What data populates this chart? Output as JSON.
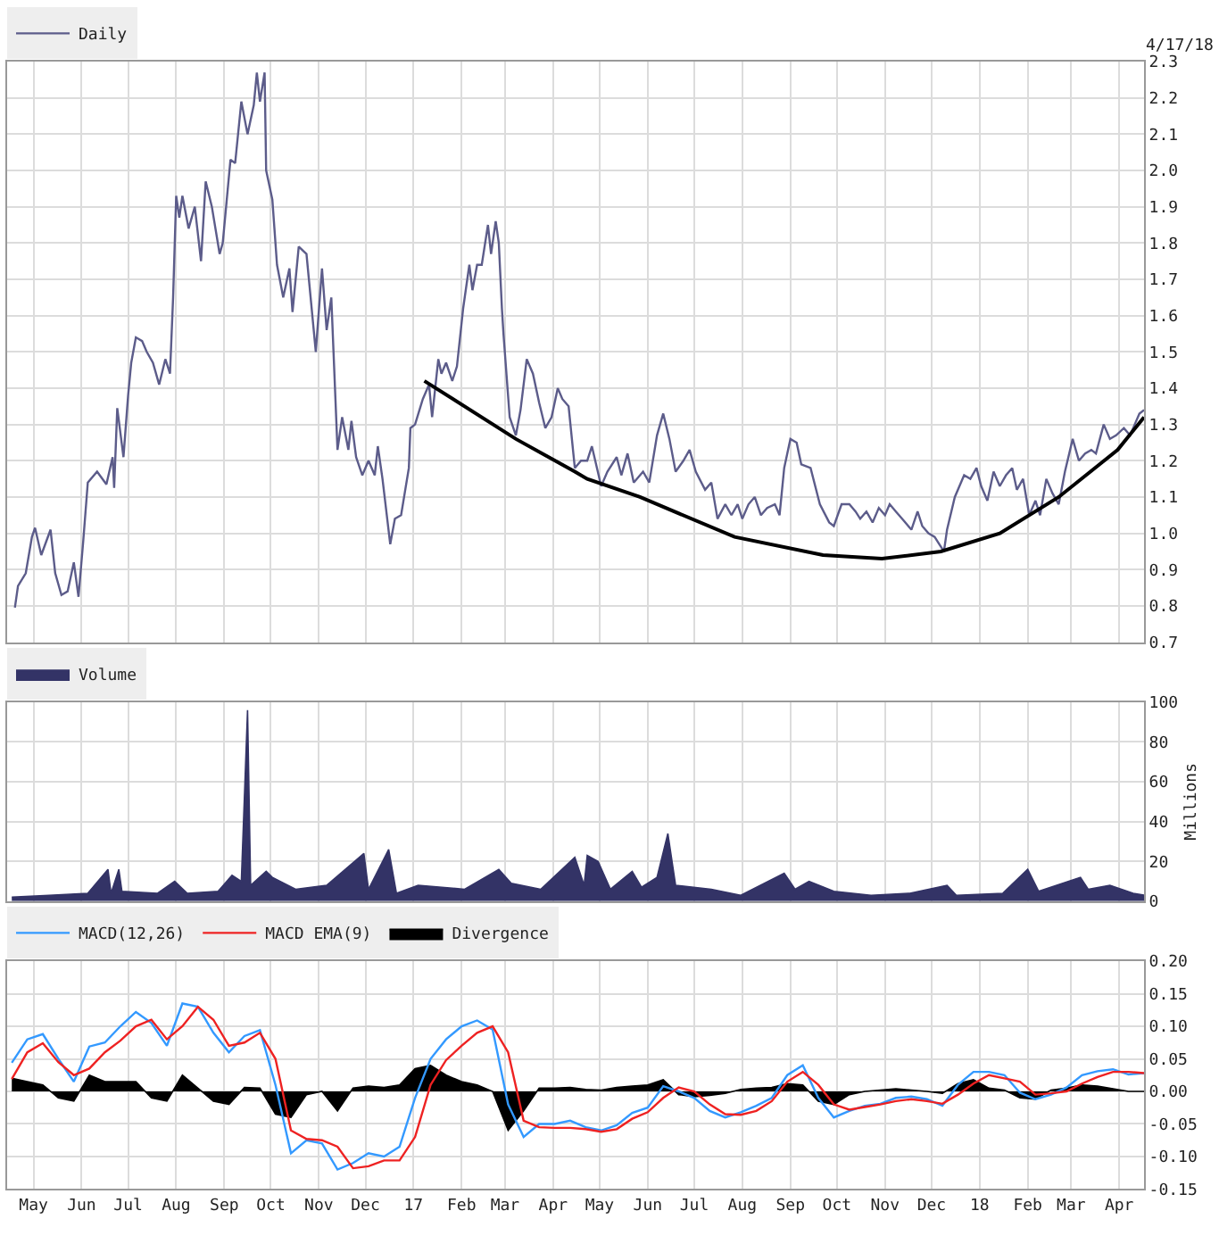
{
  "chart_data": [
    {
      "type": "line",
      "xlim": [
        "2016-04-14",
        "2018-04-17"
      ],
      "xticks": [
        {
          "value": "2016-05-01",
          "label": null
        },
        {
          "value": "2016-06-01",
          "label": null
        },
        {
          "value": "2016-07-01",
          "label": null
        },
        {
          "value": "2016-08-01",
          "label": null
        },
        {
          "value": "2016-09-01",
          "label": null
        },
        {
          "value": "2016-10-01",
          "label": null
        },
        {
          "value": "2016-11-01",
          "label": null
        },
        {
          "value": "2016-12-01",
          "label": null
        },
        {
          "value": "2017-01-01",
          "label": null
        },
        {
          "value": "2017-02-01",
          "label": null
        },
        {
          "value": "2017-03-01",
          "label": null
        },
        {
          "value": "2017-04-01",
          "label": null
        },
        {
          "value": "2017-05-01",
          "label": null
        },
        {
          "value": "2017-06-01",
          "label": null
        },
        {
          "value": "2017-07-01",
          "label": null
        },
        {
          "value": "2017-08-01",
          "label": null
        },
        {
          "value": "2017-09-01",
          "label": null
        },
        {
          "value": "2017-10-01",
          "label": null
        },
        {
          "value": "2017-11-01",
          "label": null
        },
        {
          "value": "2017-12-01",
          "label": null
        },
        {
          "value": "2018-01-01",
          "label": null
        },
        {
          "value": "2018-02-01",
          "label": null
        },
        {
          "value": "2018-03-01",
          "label": null
        },
        {
          "value": "2018-04-01",
          "label": null
        }
      ],
      "ylim": [
        0.7,
        2.3
      ],
      "yticks": [
        0.7,
        0.8,
        0.9,
        {
          "value": 1.0,
          "label": "1.0"
        },
        1.1,
        1.2,
        1.3,
        1.4,
        1.5,
        1.6,
        1.7,
        1.8,
        1.9,
        {
          "value": 2.0,
          "label": "2.0"
        },
        2.1,
        2.2,
        2.3
      ],
      "grid": true,
      "legend": "top left",
      "tick_labels": "y",
      "annotations": [
        "4/17/18"
      ],
      "series": [
        {
          "name": "Daily",
          "color": "#5c5c8a",
          "x": [
            "2016-04-19",
            "2016-04-21",
            "2016-04-26",
            "2016-04-30",
            "2016-05-02",
            "2016-05-06",
            "2016-05-12",
            "2016-05-15",
            "2016-05-19",
            "2016-05-23",
            "2016-05-27",
            "2016-05-30",
            "2016-06-02",
            "2016-06-05",
            "2016-06-11",
            "2016-06-17",
            "2016-06-21",
            "2016-06-22",
            "2016-06-24",
            "2016-06-28",
            "2016-07-01",
            "2016-07-03",
            "2016-07-06",
            "2016-07-10",
            "2016-07-13",
            "2016-07-17",
            "2016-07-21",
            "2016-07-25",
            "2016-07-28",
            "2016-07-30",
            "2016-08-01",
            "2016-08-03",
            "2016-08-05",
            "2016-08-09",
            "2016-08-13",
            "2016-08-17",
            "2016-08-20",
            "2016-08-24",
            "2016-08-29",
            "2016-08-31",
            "2016-09-05",
            "2016-09-08",
            "2016-09-12",
            "2016-09-16",
            "2016-09-20",
            "2016-09-22",
            "2016-09-24",
            "2016-09-27",
            "2016-09-28",
            "2016-10-02",
            "2016-10-05",
            "2016-10-09",
            "2016-10-13",
            "2016-10-15",
            "2016-10-19",
            "2016-10-24",
            "2016-10-26",
            "2016-10-30",
            "2016-11-03",
            "2016-11-06",
            "2016-11-09",
            "2016-11-13",
            "2016-11-16",
            "2016-11-20",
            "2016-11-22",
            "2016-11-25",
            "2016-11-29",
            "2016-12-03",
            "2016-12-07",
            "2016-12-09",
            "2016-12-12",
            "2016-12-17",
            "2016-12-20",
            "2016-12-24",
            "2016-12-29",
            "2016-12-30",
            "2017-01-02",
            "2017-01-07",
            "2017-01-11",
            "2017-01-13",
            "2017-01-17",
            "2017-01-19",
            "2017-01-22",
            "2017-01-26",
            "2017-01-29",
            "2017-02-02",
            "2017-02-06",
            "2017-02-08",
            "2017-02-11",
            "2017-02-14",
            "2017-02-18",
            "2017-02-20",
            "2017-02-23",
            "2017-02-25",
            "2017-02-27",
            "2017-02-28",
            "2017-03-04",
            "2017-03-08",
            "2017-03-11",
            "2017-03-15",
            "2017-03-19",
            "2017-03-23",
            "2017-03-27",
            "2017-03-31",
            "2017-04-04",
            "2017-04-07",
            "2017-04-11",
            "2017-04-15",
            "2017-04-19",
            "2017-04-23",
            "2017-04-26",
            "2017-05-02",
            "2017-05-06",
            "2017-05-12",
            "2017-05-15",
            "2017-05-19",
            "2017-05-23",
            "2017-05-29",
            "2017-06-02",
            "2017-06-07",
            "2017-06-11",
            "2017-06-15",
            "2017-06-19",
            "2017-06-24",
            "2017-06-28",
            "2017-07-02",
            "2017-07-08",
            "2017-07-12",
            "2017-07-16",
            "2017-07-21",
            "2017-07-25",
            "2017-07-29",
            "2017-08-01",
            "2017-08-05",
            "2017-08-09",
            "2017-08-13",
            "2017-08-17",
            "2017-08-22",
            "2017-08-25",
            "2017-08-28",
            "2017-09-01",
            "2017-09-05",
            "2017-09-08",
            "2017-09-14",
            "2017-09-20",
            "2017-09-26",
            "2017-09-29",
            "2017-10-04",
            "2017-10-09",
            "2017-10-13",
            "2017-10-16",
            "2017-10-20",
            "2017-10-24",
            "2017-10-28",
            "2017-11-01",
            "2017-11-04",
            "2017-11-08",
            "2017-11-12",
            "2017-11-18",
            "2017-11-22",
            "2017-11-25",
            "2017-11-29",
            "2017-12-03",
            "2017-12-06",
            "2017-12-09",
            "2017-12-11",
            "2017-12-16",
            "2017-12-22",
            "2017-12-26",
            "2017-12-30",
            "2018-01-02",
            "2018-01-06",
            "2018-01-10",
            "2018-01-14",
            "2018-01-18",
            "2018-01-22",
            "2018-01-25",
            "2018-01-29",
            "2018-02-02",
            "2018-02-06",
            "2018-02-09",
            "2018-02-13",
            "2018-02-17",
            "2018-02-21",
            "2018-02-25",
            "2018-03-02",
            "2018-03-06",
            "2018-03-10",
            "2018-03-14",
            "2018-03-17",
            "2018-03-22",
            "2018-03-26",
            "2018-03-30",
            "2018-04-04",
            "2018-04-08",
            "2018-04-11",
            "2018-04-14",
            "2018-04-17"
          ],
          "values": [
            0.795,
            0.855,
            0.89,
            0.99,
            1.015,
            0.94,
            1.01,
            0.89,
            0.83,
            0.84,
            0.92,
            0.825,
            0.975,
            1.14,
            1.17,
            1.135,
            1.21,
            1.125,
            1.345,
            1.21,
            1.38,
            1.47,
            1.54,
            1.53,
            1.5,
            1.47,
            1.41,
            1.48,
            1.44,
            1.65,
            1.93,
            1.87,
            1.93,
            1.84,
            1.9,
            1.75,
            1.97,
            1.9,
            1.77,
            1.8,
            2.03,
            2.02,
            2.19,
            2.1,
            2.18,
            2.27,
            2.19,
            2.27,
            2.0,
            1.92,
            1.74,
            1.65,
            1.73,
            1.61,
            1.79,
            1.77,
            1.68,
            1.5,
            1.73,
            1.56,
            1.65,
            1.23,
            1.32,
            1.23,
            1.31,
            1.21,
            1.16,
            1.2,
            1.16,
            1.24,
            1.15,
            0.97,
            1.04,
            1.05,
            1.18,
            1.29,
            1.3,
            1.37,
            1.41,
            1.32,
            1.48,
            1.44,
            1.47,
            1.42,
            1.46,
            1.62,
            1.74,
            1.67,
            1.74,
            1.74,
            1.85,
            1.77,
            1.86,
            1.8,
            1.62,
            1.55,
            1.32,
            1.27,
            1.34,
            1.48,
            1.44,
            1.36,
            1.29,
            1.32,
            1.4,
            1.37,
            1.35,
            1.18,
            1.2,
            1.2,
            1.24,
            1.13,
            1.17,
            1.21,
            1.16,
            1.22,
            1.14,
            1.17,
            1.14,
            1.27,
            1.33,
            1.26,
            1.17,
            1.2,
            1.23,
            1.17,
            1.12,
            1.14,
            1.04,
            1.08,
            1.05,
            1.08,
            1.04,
            1.08,
            1.1,
            1.05,
            1.07,
            1.08,
            1.05,
            1.18,
            1.26,
            1.25,
            1.19,
            1.18,
            1.08,
            1.03,
            1.02,
            1.08,
            1.08,
            1.06,
            1.04,
            1.06,
            1.03,
            1.07,
            1.05,
            1.08,
            1.06,
            1.04,
            1.01,
            1.06,
            1.02,
            1.0,
            0.99,
            0.97,
            0.95,
            1.01,
            1.1,
            1.16,
            1.15,
            1.18,
            1.13,
            1.09,
            1.17,
            1.13,
            1.16,
            1.18,
            1.12,
            1.15,
            1.05,
            1.09,
            1.05,
            1.15,
            1.11,
            1.08,
            1.17,
            1.26,
            1.2,
            1.22,
            1.23,
            1.22,
            1.3,
            1.26,
            1.27,
            1.29,
            1.27,
            1.3,
            1.33,
            1.34
          ]
        },
        {
          "type": "line",
          "color": "#000000",
          "x": [
            "2017-01-08",
            "2017-03-08",
            "2017-04-15",
            "2017-04-23",
            "2017-05-27",
            "2017-07-27",
            "2017-09-22",
            "2017-10-30",
            "2017-12-07",
            "2018-01-14",
            "2018-02-21",
            "2018-03-31",
            "2018-04-17"
          ],
          "values": [
            1.42,
            1.26,
            1.17,
            1.15,
            1.1,
            0.99,
            0.94,
            0.93,
            0.95,
            1.0,
            1.1,
            1.23,
            1.32
          ]
        }
      ]
    },
    {
      "type": "area",
      "xlim": [
        "2016-04-14",
        "2018-04-17"
      ],
      "xticks": [
        {
          "value": "2016-05-01",
          "label": null
        },
        {
          "value": "2016-06-01",
          "label": null
        },
        {
          "value": "2016-07-01",
          "label": null
        },
        {
          "value": "2016-08-01",
          "label": null
        },
        {
          "value": "2016-09-01",
          "label": null
        },
        {
          "value": "2016-10-01",
          "label": null
        },
        {
          "value": "2016-11-01",
          "label": null
        },
        {
          "value": "2016-12-01",
          "label": null
        },
        {
          "value": "2017-01-01",
          "label": null
        },
        {
          "value": "2017-02-01",
          "label": null
        },
        {
          "value": "2017-03-01",
          "label": null
        },
        {
          "value": "2017-04-01",
          "label": null
        },
        {
          "value": "2017-05-01",
          "label": null
        },
        {
          "value": "2017-06-01",
          "label": null
        },
        {
          "value": "2017-07-01",
          "label": null
        },
        {
          "value": "2017-08-01",
          "label": null
        },
        {
          "value": "2017-09-01",
          "label": null
        },
        {
          "value": "2017-10-01",
          "label": null
        },
        {
          "value": "2017-11-01",
          "label": null
        },
        {
          "value": "2017-12-01",
          "label": null
        },
        {
          "value": "2018-01-01",
          "label": null
        },
        {
          "value": "2018-02-01",
          "label": null
        },
        {
          "value": "2018-03-01",
          "label": null
        },
        {
          "value": "2018-04-01",
          "label": null
        }
      ],
      "ylim": [
        0,
        100
      ],
      "yticks": [
        0,
        20,
        40,
        60,
        80,
        100
      ],
      "ylabel": "Millions",
      "grid": true,
      "legend": "top left",
      "tick_labels": "y",
      "x": [
        "2016-04-17",
        "2016-05-11",
        "2016-06-05",
        "2016-06-18",
        "2016-06-20",
        "2016-06-25",
        "2016-06-27",
        "2016-07-20",
        "2016-07-31",
        "2016-08-08",
        "2016-08-28",
        "2016-09-06",
        "2016-09-12",
        "2016-09-16",
        "2016-09-18",
        "2016-09-28",
        "2016-10-02",
        "2016-10-17",
        "2016-11-06",
        "2016-11-30",
        "2016-12-03",
        "2016-12-16",
        "2016-12-21",
        "2017-01-04",
        "2017-02-03",
        "2017-02-25",
        "2017-03-05",
        "2017-03-24",
        "2017-04-15",
        "2017-04-21",
        "2017-04-23",
        "2017-04-30",
        "2017-05-08",
        "2017-05-22",
        "2017-05-28",
        "2017-06-07",
        "2017-06-14",
        "2017-06-19",
        "2017-07-12",
        "2017-07-31",
        "2017-08-28",
        "2017-09-04",
        "2017-09-13",
        "2017-09-29",
        "2017-10-23",
        "2017-11-17",
        "2017-12-11",
        "2017-12-17",
        "2018-01-16",
        "2018-02-01",
        "2018-02-08",
        "2018-03-07",
        "2018-03-12",
        "2018-03-26",
        "2018-04-10",
        "2018-04-17"
      ],
      "series": [
        {
          "name": "Volume",
          "color": "#333366",
          "values": [
            2,
            3,
            4,
            16,
            4,
            16,
            5,
            4,
            10,
            4,
            5,
            13,
            10,
            96,
            8,
            15,
            12,
            6,
            8,
            24,
            6,
            26,
            4,
            8,
            6,
            16,
            9,
            6,
            22,
            8,
            23,
            20,
            6,
            15,
            7,
            12,
            34,
            8,
            6,
            3,
            14,
            6,
            10,
            5,
            3,
            4,
            8,
            3,
            4,
            16,
            5,
            12,
            6,
            8,
            4,
            3
          ]
        }
      ]
    },
    {
      "type": "line",
      "xlim": [
        "2016-04-14",
        "2018-04-17"
      ],
      "xticks": [
        {
          "value": "2016-05-01",
          "label": "May"
        },
        {
          "value": "2016-06-01",
          "label": "Jun"
        },
        {
          "value": "2016-07-01",
          "label": "Jul"
        },
        {
          "value": "2016-08-01",
          "label": "Aug"
        },
        {
          "value": "2016-09-01",
          "label": "Sep"
        },
        {
          "value": "2016-10-01",
          "label": "Oct"
        },
        {
          "value": "2016-11-01",
          "label": "Nov"
        },
        {
          "value": "2016-12-01",
          "label": "Dec"
        },
        {
          "value": "2017-01-01",
          "label": "17"
        },
        {
          "value": "2017-02-01",
          "label": "Feb"
        },
        {
          "value": "2017-03-01",
          "label": "Mar"
        },
        {
          "value": "2017-04-01",
          "label": "Apr"
        },
        {
          "value": "2017-05-01",
          "label": "May"
        },
        {
          "value": "2017-06-01",
          "label": "Jun"
        },
        {
          "value": "2017-07-01",
          "label": "Jul"
        },
        {
          "value": "2017-08-01",
          "label": "Aug"
        },
        {
          "value": "2017-09-01",
          "label": "Sep"
        },
        {
          "value": "2017-10-01",
          "label": "Oct"
        },
        {
          "value": "2017-11-01",
          "label": "Nov"
        },
        {
          "value": "2017-12-01",
          "label": "Dec"
        },
        {
          "value": "2018-01-01",
          "label": "18"
        },
        {
          "value": "2018-02-01",
          "label": "Feb"
        },
        {
          "value": "2018-03-01",
          "label": "Mar"
        },
        {
          "value": "2018-04-01",
          "label": "Apr"
        }
      ],
      "ylim": [
        -0.15,
        0.2
      ],
      "yticks": [
        {
          "value": -0.15,
          "label": "-0.15"
        },
        {
          "value": -0.1,
          "label": "-0.10"
        },
        {
          "value": -0.05,
          "label": "-0.05"
        },
        {
          "value": 0,
          "label": "0.00"
        },
        {
          "value": 0.05,
          "label": "0.05"
        },
        {
          "value": 0.1,
          "label": "0.10"
        },
        {
          "value": 0.15,
          "label": "0.15"
        },
        {
          "value": 0.2,
          "label": "0.20"
        }
      ],
      "grid": true,
      "legend": "top left",
      "x": [
        "2016-04-17",
        "2016-04-27",
        "2016-05-07",
        "2016-05-17",
        "2016-05-27",
        "2016-06-06",
        "2016-06-16",
        "2016-06-26",
        "2016-07-06",
        "2016-07-16",
        "2016-07-26",
        "2016-08-05",
        "2016-08-15",
        "2016-08-25",
        "2016-09-04",
        "2016-09-14",
        "2016-09-24",
        "2016-10-04",
        "2016-10-14",
        "2016-10-24",
        "2016-11-03",
        "2016-11-13",
        "2016-11-23",
        "2016-12-03",
        "2016-12-13",
        "2016-12-23",
        "2017-01-02",
        "2017-01-12",
        "2017-01-22",
        "2017-02-01",
        "2017-02-11",
        "2017-02-21",
        "2017-03-03",
        "2017-03-13",
        "2017-03-23",
        "2017-04-02",
        "2017-04-12",
        "2017-04-22",
        "2017-05-02",
        "2017-05-12",
        "2017-05-22",
        "2017-06-01",
        "2017-06-11",
        "2017-06-21",
        "2017-07-01",
        "2017-07-11",
        "2017-07-21",
        "2017-07-31",
        "2017-08-10",
        "2017-08-20",
        "2017-08-30",
        "2017-09-09",
        "2017-09-19",
        "2017-09-29",
        "2017-10-09",
        "2017-10-19",
        "2017-10-29",
        "2017-11-08",
        "2017-11-18",
        "2017-11-28",
        "2017-12-08",
        "2017-12-18",
        "2017-12-28",
        "2018-01-07",
        "2018-01-17",
        "2018-01-27",
        "2018-02-06",
        "2018-02-16",
        "2018-02-26",
        "2018-03-08",
        "2018-03-18",
        "2018-03-28",
        "2018-04-07",
        "2018-04-17"
      ],
      "series": [
        {
          "name": "MACD(12,26)",
          "color": "#3399ff",
          "values": [
            0.044,
            0.08,
            0.088,
            0.05,
            0.015,
            0.069,
            0.075,
            0.1,
            0.122,
            0.105,
            0.07,
            0.135,
            0.13,
            0.09,
            0.06,
            0.085,
            0.094,
            0.01,
            -0.095,
            -0.075,
            -0.08,
            -0.12,
            -0.11,
            -0.095,
            -0.1,
            -0.085,
            -0.01,
            0.05,
            0.08,
            0.1,
            0.109,
            0.095,
            -0.02,
            -0.07,
            -0.05,
            -0.05,
            -0.045,
            -0.055,
            -0.06,
            -0.052,
            -0.033,
            -0.025,
            0.008,
            0.0,
            -0.01,
            -0.03,
            -0.04,
            -0.032,
            -0.022,
            -0.01,
            0.025,
            0.04,
            -0.01,
            -0.04,
            -0.03,
            -0.022,
            -0.019,
            -0.01,
            -0.008,
            -0.012,
            -0.022,
            0.01,
            0.03,
            0.03,
            0.025,
            -0.002,
            -0.012,
            -0.005,
            0.006,
            0.025,
            0.031,
            0.034,
            0.026,
            0.028
          ]
        },
        {
          "name": "MACD EMA(9)",
          "color": "#ee2222",
          "values": [
            0.019,
            0.06,
            0.074,
            0.045,
            0.025,
            0.035,
            0.06,
            0.078,
            0.1,
            0.11,
            0.08,
            0.1,
            0.13,
            0.11,
            0.07,
            0.075,
            0.09,
            0.05,
            -0.06,
            -0.073,
            -0.075,
            -0.085,
            -0.118,
            -0.115,
            -0.106,
            -0.106,
            -0.07,
            0.01,
            0.048,
            0.07,
            0.09,
            0.1,
            0.06,
            -0.045,
            -0.055,
            -0.056,
            -0.056,
            -0.058,
            -0.062,
            -0.058,
            -0.042,
            -0.032,
            -0.01,
            0.006,
            0.0,
            -0.02,
            -0.035,
            -0.036,
            -0.03,
            -0.015,
            0.015,
            0.03,
            0.01,
            -0.02,
            -0.028,
            -0.024,
            -0.02,
            -0.015,
            -0.012,
            -0.015,
            -0.019,
            -0.005,
            0.012,
            0.025,
            0.02,
            0.015,
            -0.005,
            -0.003,
            0.0,
            0.012,
            0.022,
            0.03,
            0.03,
            0.028
          ]
        },
        {
          "name": "Divergence",
          "type": "area",
          "color": "#000000",
          "values": [
            0.02,
            0.015,
            0.01,
            -0.01,
            -0.015,
            0.025,
            0.015,
            0.015,
            0.015,
            -0.01,
            -0.015,
            0.025,
            0.005,
            -0.015,
            -0.02,
            0.006,
            0.005,
            -0.035,
            -0.04,
            -0.005,
            0.0,
            -0.03,
            0.005,
            0.008,
            0.006,
            0.01,
            0.035,
            0.04,
            0.025,
            0.015,
            0.01,
            0.0,
            -0.06,
            -0.03,
            0.005,
            0.005,
            0.006,
            0.003,
            0.002,
            0.006,
            0.008,
            0.01,
            0.018,
            -0.005,
            -0.008,
            -0.006,
            -0.003,
            0.003,
            0.005,
            0.006,
            0.012,
            0.01,
            -0.015,
            -0.02,
            -0.005,
            0.0,
            0.002,
            0.004,
            0.002,
            0.0,
            -0.003,
            0.012,
            0.018,
            0.005,
            0.002,
            -0.01,
            -0.012,
            0.002,
            0.005,
            0.01,
            0.008,
            0.004,
            0.0,
            0.0
          ]
        }
      ]
    }
  ]
}
